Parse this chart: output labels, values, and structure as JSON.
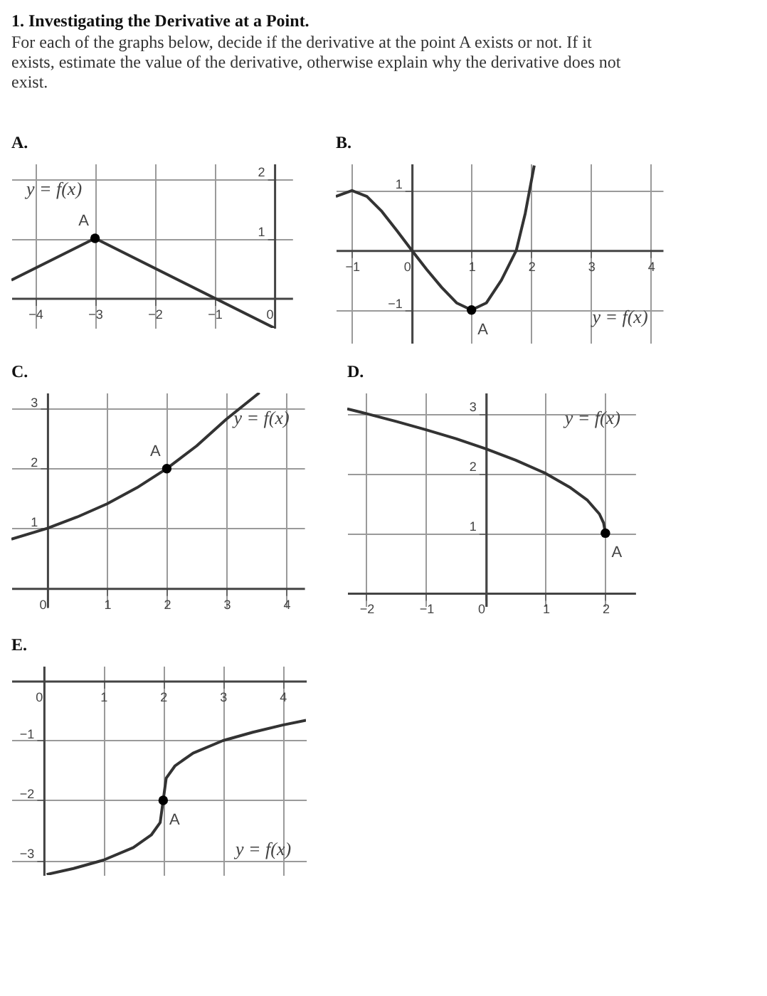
{
  "chart_data": [
    {
      "type": "other",
      "title": "1. Investigating the Derivative at a Point.",
      "subtitle": "For each of the graphs below, decide if the derivative at the point A exists or not. If it exists, estimate the value of the derivative, otherwise explain why the derivative does not exist."
    },
    {
      "type": "line",
      "title": "A.",
      "xlim": [
        -4.4,
        0.3
      ],
      "ylim": [
        -0.5,
        2.25
      ],
      "xticks": [
        -4,
        -3,
        -2,
        -1,
        0
      ],
      "yticks": [
        1,
        2
      ],
      "grid": true,
      "series": [
        {
          "type": "line",
          "color": "#333333",
          "x": [
            -4.4,
            -3,
            0
          ],
          "values": [
            0.3,
            1,
            -0.5
          ]
        },
        {
          "type": "scatter",
          "color": "#000000",
          "x": [
            -3
          ],
          "values": [
            1
          ]
        }
      ],
      "annotations": [
        "A",
        "y = f(x)"
      ]
    },
    {
      "type": "line",
      "title": "B.",
      "xlim": [
        -1.27,
        4.2
      ],
      "ylim": [
        -1.55,
        1.45
      ],
      "xticks": [
        -1,
        0,
        1,
        2,
        3,
        4
      ],
      "yticks": [
        -1,
        1
      ],
      "grid": true,
      "series": [
        {
          "type": "line",
          "color": "#333333",
          "x": [
            -1.27,
            -1,
            -0.75,
            -0.5,
            -0.25,
            0,
            0.25,
            0.5,
            0.75,
            1,
            1.25,
            1.5,
            1.75,
            1.9,
            2.05
          ],
          "values": [
            0.9,
            1,
            0.9,
            0.65,
            0.33,
            0,
            -0.32,
            -0.62,
            -0.88,
            -1,
            -0.88,
            -0.5,
            0.0,
            0.62,
            1.42
          ]
        },
        {
          "type": "scatter",
          "color": "#000000",
          "x": [
            1
          ],
          "values": [
            -1
          ]
        }
      ],
      "annotations": [
        "A",
        "y = f(x)"
      ]
    },
    {
      "type": "line",
      "title": "C.",
      "xlim": [
        -0.6,
        4.3
      ],
      "ylim": [
        -0.32,
        3.27
      ],
      "xticks": [
        0,
        1,
        2,
        3,
        4
      ],
      "yticks": [
        1,
        2,
        3
      ],
      "grid": true,
      "series": [
        {
          "type": "line",
          "color": "#333333",
          "x": [
            -0.6,
            0,
            0.5,
            1,
            1.5,
            2,
            2.5,
            3,
            3.55
          ],
          "values": [
            0.82,
            1,
            1.19,
            1.41,
            1.68,
            2,
            2.38,
            2.83,
            3.27
          ]
        },
        {
          "type": "scatter",
          "color": "#000000",
          "x": [
            2
          ],
          "values": [
            2
          ]
        }
      ],
      "annotations": [
        "A",
        "y = f(x)"
      ]
    },
    {
      "type": "line",
      "title": "D.",
      "xlim": [
        -2.32,
        2.5
      ],
      "ylim": [
        -0.22,
        3.35
      ],
      "xticks": [
        -2,
        -1,
        0,
        1,
        2
      ],
      "yticks": [
        1,
        2,
        3
      ],
      "grid": true,
      "series": [
        {
          "type": "line",
          "color": "#333333",
          "x": [
            -2.32,
            -2,
            -1.5,
            -1,
            -0.5,
            0,
            0.5,
            1,
            1.4,
            1.7,
            1.9,
            1.97,
            2
          ],
          "values": [
            3.08,
            3,
            2.87,
            2.73,
            2.58,
            2.41,
            2.22,
            2,
            1.77,
            1.55,
            1.32,
            1.17,
            1
          ]
        },
        {
          "type": "scatter",
          "color": "#000000",
          "x": [
            2
          ],
          "values": [
            1
          ]
        }
      ],
      "annotations": [
        "A",
        "y = f(x)"
      ]
    },
    {
      "type": "line",
      "title": "E.",
      "xlim": [
        -0.54,
        4.39
      ],
      "ylim": [
        -3.25,
        0.25
      ],
      "xticks": [
        0,
        1,
        2,
        3,
        4
      ],
      "yticks": [
        -1,
        -2,
        -3
      ],
      "grid": true,
      "series": [
        {
          "type": "line",
          "color": "#333333",
          "x": [
            0.05,
            0.5,
            1,
            1.5,
            1.8,
            1.95,
            2,
            2.05,
            2.2,
            2.5,
            3,
            3.5,
            4,
            4.39
          ],
          "values": [
            -3.24,
            -3.14,
            -3,
            -2.79,
            -2.58,
            -2.37,
            -2,
            -1.63,
            -1.42,
            -1.21,
            -1,
            -0.86,
            -0.74,
            -0.66
          ]
        },
        {
          "type": "scatter",
          "color": "#000000",
          "x": [
            2
          ],
          "values": [
            -2
          ]
        }
      ],
      "annotations": [
        "A",
        "y = f(x)"
      ]
    }
  ]
}
